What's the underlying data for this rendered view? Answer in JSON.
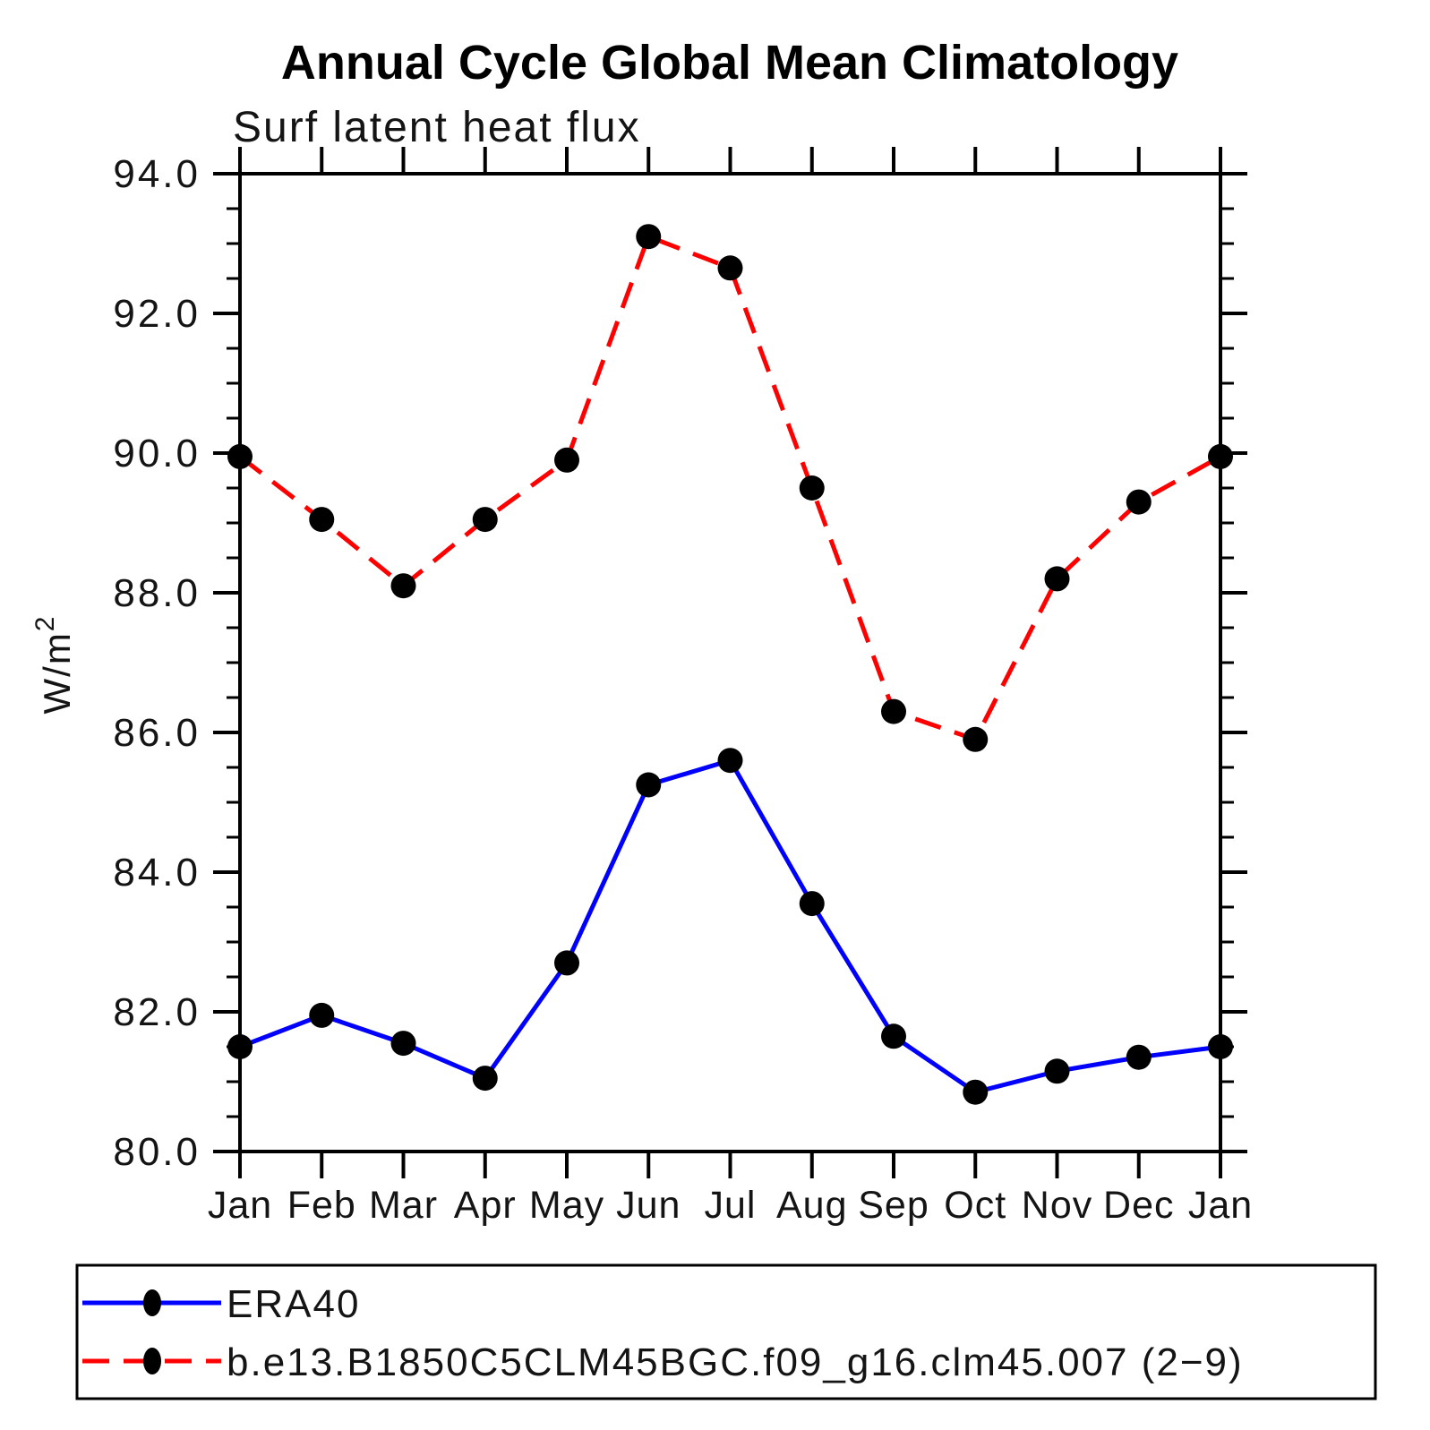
{
  "header": {
    "title": "Annual Cycle Global Mean Climatology",
    "subtitle": "Surf latent heat flux"
  },
  "axis": {
    "y_label_base": "W/m",
    "y_label_exponent": "2"
  },
  "legend": {
    "position": "bottom",
    "entries": [
      {
        "label": "ERA40",
        "color": "#0000ff",
        "style": "solid",
        "marker": "black-dot"
      },
      {
        "label": "b.e13.B1850C5CLM45BGC.f09_g16.clm45.007 (2−9)",
        "color": "#ff0000",
        "style": "dashed",
        "marker": "black-dot"
      }
    ]
  },
  "colors": {
    "era40_line": "#0000ff",
    "model_line": "#ff0000",
    "marker": "#000000",
    "axis": "#000000",
    "background": "#ffffff"
  },
  "chart_data": {
    "type": "line",
    "title": "Annual Cycle Global Mean Climatology",
    "subtitle": "Surf latent heat flux",
    "ylabel": "W/m^2",
    "xlabel": "",
    "x_tick_labels": [
      "Jan",
      "Feb",
      "Mar",
      "Apr",
      "May",
      "Jun",
      "Jul",
      "Aug",
      "Sep",
      "Oct",
      "Nov",
      "Dec",
      "Jan"
    ],
    "ylim": [
      80.0,
      94.0
    ],
    "y_ticks": [
      80.0,
      82.0,
      84.0,
      86.0,
      88.0,
      90.0,
      92.0,
      94.0
    ],
    "y_tick_labels": [
      "80.0",
      "82.0",
      "84.0",
      "86.0",
      "88.0",
      "90.0",
      "92.0",
      "94.0"
    ],
    "y_minor_step": 0.5,
    "grid": false,
    "legend_position": "bottom",
    "series": [
      {
        "name": "ERA40",
        "color": "#0000ff",
        "line_style": "solid",
        "marker": "black-circle",
        "values": [
          81.5,
          81.95,
          81.55,
          81.05,
          82.7,
          85.25,
          85.6,
          83.55,
          81.65,
          80.85,
          81.15,
          81.35,
          81.5
        ]
      },
      {
        "name": "b.e13.B1850C5CLM45BGC.f09_g16.clm45.007 (2−9)",
        "color": "#ff0000",
        "line_style": "dashed",
        "marker": "black-circle",
        "values": [
          89.95,
          89.05,
          88.1,
          89.05,
          89.9,
          93.1,
          92.65,
          89.5,
          86.3,
          85.9,
          88.2,
          89.3,
          89.95
        ]
      }
    ]
  }
}
